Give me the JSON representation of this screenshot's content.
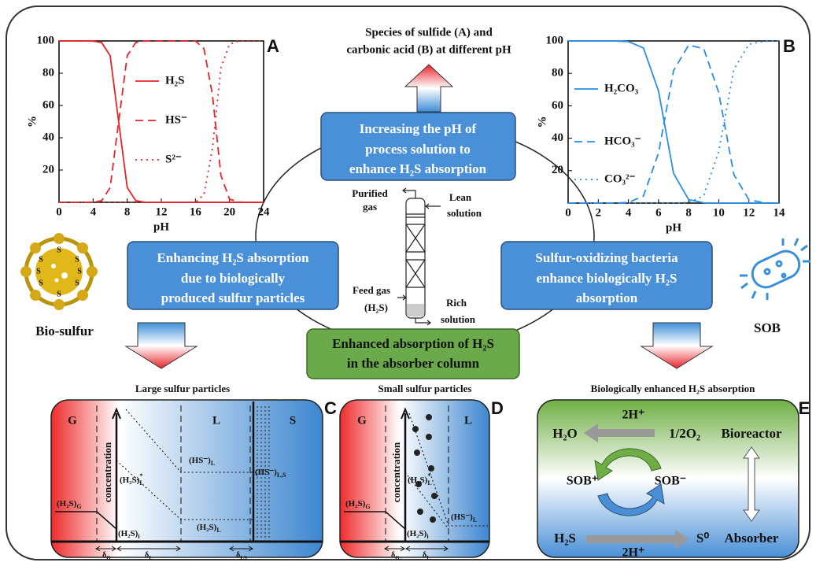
{
  "title": [
    "Species of sulfide (A) and",
    "carbonic acid (B) at different pH"
  ],
  "panels": {
    "a": {
      "label": "A",
      "type": "line",
      "xlabel": "pH",
      "ylabel": "%",
      "xlim": [
        0,
        24
      ],
      "ylim": [
        0,
        100
      ],
      "xticks": [
        0,
        4,
        8,
        12,
        16,
        20,
        24
      ],
      "yticks": [
        20,
        40,
        60,
        80,
        100
      ],
      "x": [
        0,
        1,
        2,
        3,
        4,
        5,
        6,
        7,
        8,
        9,
        10,
        11,
        12,
        13,
        14,
        15,
        16,
        17,
        18,
        19,
        20,
        21,
        22,
        23,
        24
      ],
      "series": [
        {
          "name": "H₂S",
          "color": "#e8232b",
          "dash": "solid",
          "values": [
            100,
            100,
            100,
            100,
            99.9,
            99,
            90.9,
            50,
            9.1,
            1,
            0.1,
            0,
            0,
            0,
            0,
            0,
            0,
            0,
            0,
            0,
            0,
            0,
            0,
            0,
            0
          ]
        },
        {
          "name": "HS⁻",
          "color": "#e8232b",
          "dash": "dashed",
          "values": [
            0,
            0,
            0,
            0,
            0.1,
            1,
            9.1,
            50,
            90.9,
            99,
            99.9,
            100,
            100,
            100,
            100,
            100,
            100,
            95.2,
            66.6,
            16.6,
            2,
            0.2,
            0,
            0,
            0
          ]
        },
        {
          "name": "S²⁻",
          "color": "#e8232b",
          "dash": "dotted",
          "values": [
            0,
            0,
            0,
            0,
            0,
            0,
            0,
            0,
            0,
            0,
            0,
            0,
            0,
            0,
            0,
            0,
            0,
            4.8,
            33.4,
            83.4,
            98,
            99.8,
            100,
            100,
            100
          ]
        }
      ]
    },
    "b": {
      "label": "B",
      "type": "line",
      "xlabel": "pH",
      "ylabel": "%",
      "xlim": [
        0,
        14
      ],
      "ylim": [
        0,
        100
      ],
      "xticks": [
        0,
        2,
        4,
        6,
        8,
        10,
        12,
        14
      ],
      "yticks": [
        20,
        40,
        60,
        80,
        100
      ],
      "x": [
        0,
        1,
        2,
        3,
        4,
        5,
        6,
        7,
        8,
        9,
        10,
        11,
        12,
        13,
        14
      ],
      "series": [
        {
          "name": "H₂CO₃",
          "color": "#2a8ee6",
          "dash": "solid",
          "values": [
            100,
            100,
            100,
            100,
            99.6,
            95.7,
            69.1,
            18.3,
            2.2,
            0.2,
            0,
            0,
            0,
            0,
            0
          ]
        },
        {
          "name": "HCO₃⁻",
          "color": "#2a8ee6",
          "dash": "dashed",
          "values": [
            0,
            0,
            0,
            0,
            0.4,
            4.3,
            30.9,
            81.7,
            97.4,
            95.3,
            68.1,
            17.6,
            2.1,
            0.2,
            0
          ]
        },
        {
          "name": "CO₃²⁻",
          "color": "#2a8ee6",
          "dash": "dotted",
          "values": [
            0,
            0,
            0,
            0,
            0,
            0,
            0,
            0,
            0.4,
            4.5,
            31.9,
            82.4,
            97.9,
            99.8,
            100
          ]
        }
      ]
    },
    "c": {
      "label": "C",
      "title": "Large sulfur particles",
      "phases": [
        "G",
        "L",
        "S"
      ],
      "axis": "concentration",
      "labels": [
        {
          "t": "(H₂S)",
          "sub": "G"
        },
        {
          "t": "(H₂S)",
          "sup": "*",
          "sub": "L"
        },
        {
          "t": "(HS⁻)",
          "sub": "L"
        },
        {
          "t": "(HS⁻)",
          "sub": "L,S"
        },
        {
          "t": "(H₂S)",
          "sub": "L"
        },
        {
          "t": "(H₂S)",
          "sub": "i"
        }
      ],
      "deltas": [
        {
          "t": "δ",
          "sub": "G"
        },
        {
          "t": "δ",
          "sub": "L"
        },
        {
          "t": "δ",
          "sub": "LS"
        }
      ]
    },
    "d": {
      "label": "D",
      "title": "Small sulfur particles",
      "phases": [
        "G",
        "L"
      ],
      "axis": "concentration",
      "labels": [
        {
          "t": "(H₂S)",
          "sub": "G"
        },
        {
          "t": "(H₂S)",
          "sup": "*",
          "sub": "L"
        },
        {
          "t": "(HS⁻)",
          "sub": "L"
        },
        {
          "t": "(H₂S)",
          "sub": "i"
        }
      ],
      "deltas": [
        {
          "t": "δ",
          "sub": "G"
        },
        {
          "t": "δ",
          "sub": "L"
        }
      ]
    },
    "e": {
      "label": "E",
      "title": "Biologically enhanced H₂S absorption",
      "texts": [
        "2H⁺",
        "H₂O",
        "1/2O₂",
        "Bioreactor",
        "SOB⁺",
        "SOB⁻",
        "H₂S",
        "S⁰",
        "2H⁺",
        "Absorber"
      ]
    }
  },
  "boxes": {
    "top": [
      "Increasing the pH of",
      "process solution to",
      "enhance H₂S absorption"
    ],
    "left": [
      "Enhancing H₂S absorption",
      "due to biologically",
      "produced sulfur particles"
    ],
    "right": [
      "Sulfur-oxidizing bacteria",
      "enhance biologically H₂S",
      "absorption"
    ],
    "bottom": [
      "Enhanced absorption of H₂S",
      "in the absorber column"
    ]
  },
  "column": {
    "purified": [
      "Purified",
      "gas"
    ],
    "lean": [
      "Lean",
      "solution"
    ],
    "feed": [
      "Feed gas",
      "(H₂S)"
    ],
    "rich": [
      "Rich",
      "solution"
    ]
  },
  "bio_sulfur": {
    "label": "Bio-sulfur",
    "atom": "S"
  },
  "sob": {
    "label": "SOB"
  }
}
